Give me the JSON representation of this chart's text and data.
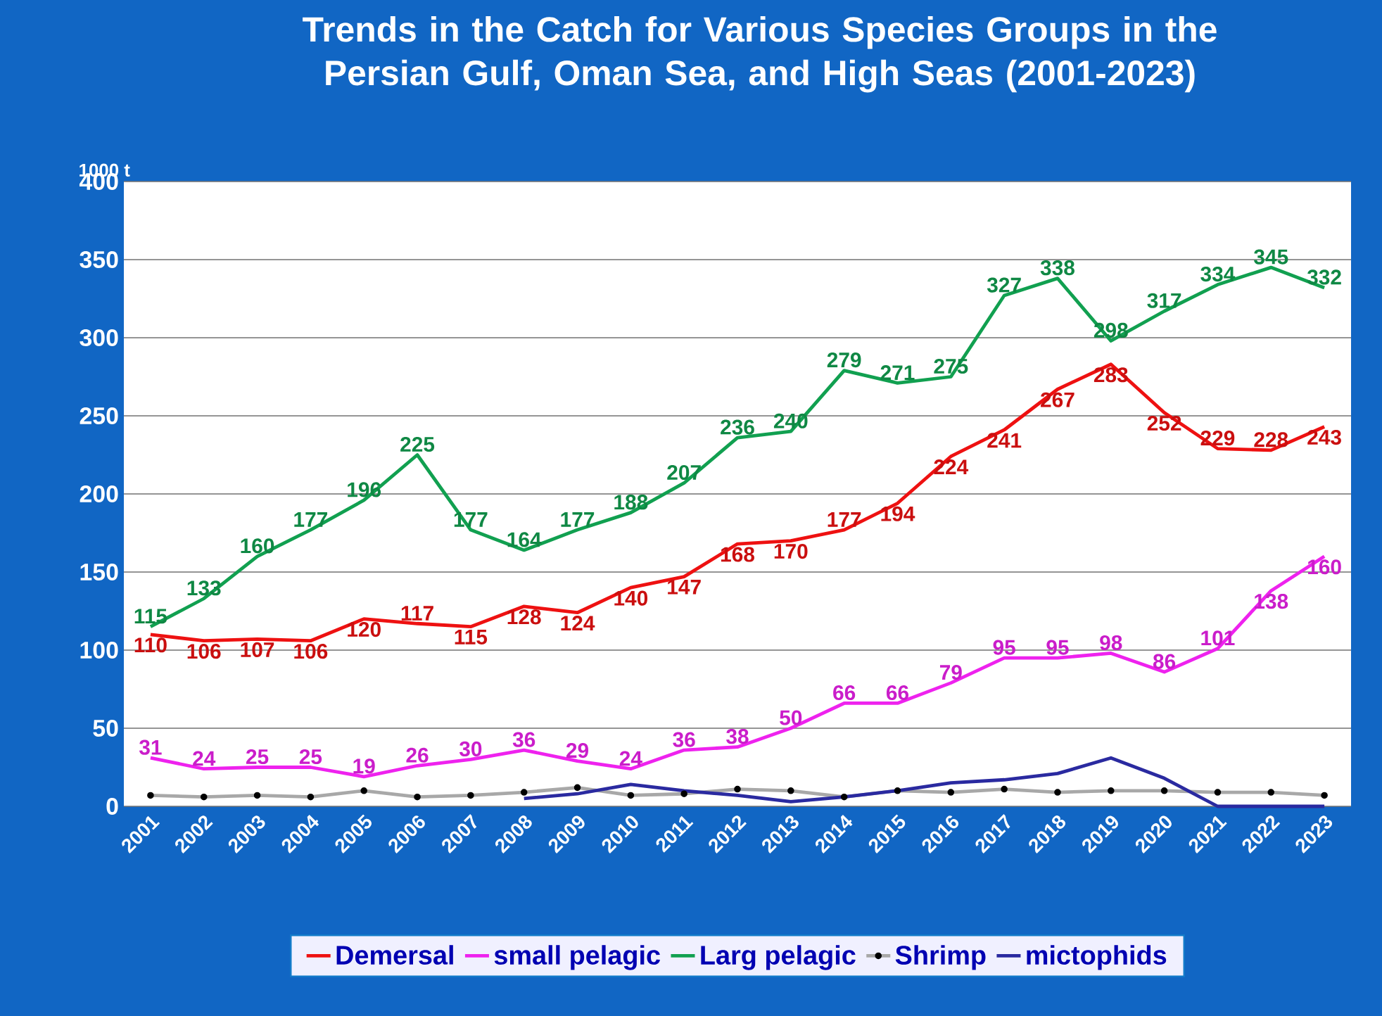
{
  "chart_data": {
    "type": "line",
    "title": "Trends in the Catch for Various Species Groups in the Persian Gulf, Oman Sea, and High Seas (2001-2023)",
    "ylabel": "1000 t",
    "categories": [
      "2001",
      "2002",
      "2003",
      "2004",
      "2005",
      "2006",
      "2007",
      "2008",
      "2009",
      "2010",
      "2011",
      "2012",
      "2013",
      "2014",
      "2015",
      "2016",
      "2017",
      "2018",
      "2019",
      "2020",
      "2021",
      "2022",
      "2023"
    ],
    "series": [
      {
        "name": "Demersal",
        "color": "#ee1111",
        "values": [
          110,
          106,
          107,
          106,
          120,
          117,
          115,
          128,
          124,
          140,
          147,
          168,
          170,
          177,
          194,
          224,
          241,
          267,
          283,
          252,
          229,
          228,
          243
        ],
        "value_labels": [
          "110",
          "106",
          "107",
          "106",
          "120",
          "117",
          "115",
          "128",
          "124",
          "140",
          "147",
          "168",
          "170",
          "177",
          "194",
          "224",
          "241",
          "267",
          "283",
          "252",
          "229",
          "228",
          "243"
        ]
      },
      {
        "name": "small pelagic",
        "color": "#ee22ee",
        "values": [
          31,
          24,
          25,
          25,
          19,
          26,
          30,
          36,
          29,
          24,
          36,
          38,
          50,
          66,
          66,
          79,
          95,
          95,
          98,
          86,
          101,
          138,
          160
        ],
        "value_labels": [
          "31",
          "24",
          "25",
          "25",
          "19",
          "26",
          "30",
          "36",
          "29",
          "24",
          "36",
          "38",
          "50",
          "66",
          "66",
          "79",
          "95",
          "95",
          "98",
          "86",
          "101",
          "138",
          "160"
        ]
      },
      {
        "name": "Larg pelagic",
        "color": "#11a050",
        "values": [
          115,
          133,
          160,
          177,
          196,
          225,
          177,
          164,
          177,
          188,
          207,
          236,
          240,
          279,
          271,
          275,
          327,
          338,
          298,
          317,
          334,
          345,
          332
        ],
        "value_labels": [
          "115",
          "133",
          "160",
          "177",
          "196",
          "225",
          "177",
          "164",
          "177",
          "188",
          "207",
          "236",
          "240",
          "279",
          "271",
          "275",
          "327",
          "338",
          "298",
          "317",
          "334",
          "345",
          "332"
        ]
      },
      {
        "name": "Shrimp",
        "color": "#a8a8a8",
        "marker": "circle",
        "values": [
          7,
          6,
          7,
          6,
          10,
          6,
          7,
          9,
          12,
          7,
          8,
          11,
          10,
          6,
          10,
          9,
          11,
          9,
          10,
          10,
          9,
          9,
          7
        ]
      },
      {
        "name": "mictophids",
        "color": "#2a2aa0",
        "values": [
          null,
          null,
          null,
          null,
          null,
          null,
          null,
          5,
          8,
          14,
          10,
          7,
          3,
          6,
          10,
          15,
          17,
          21,
          31,
          18,
          0,
          0,
          0
        ]
      }
    ],
    "ylim": [
      0,
      400
    ],
    "yticks": [
      0,
      50,
      100,
      150,
      200,
      250,
      300,
      350,
      400
    ],
    "grid": "y",
    "legend": "bottom"
  }
}
